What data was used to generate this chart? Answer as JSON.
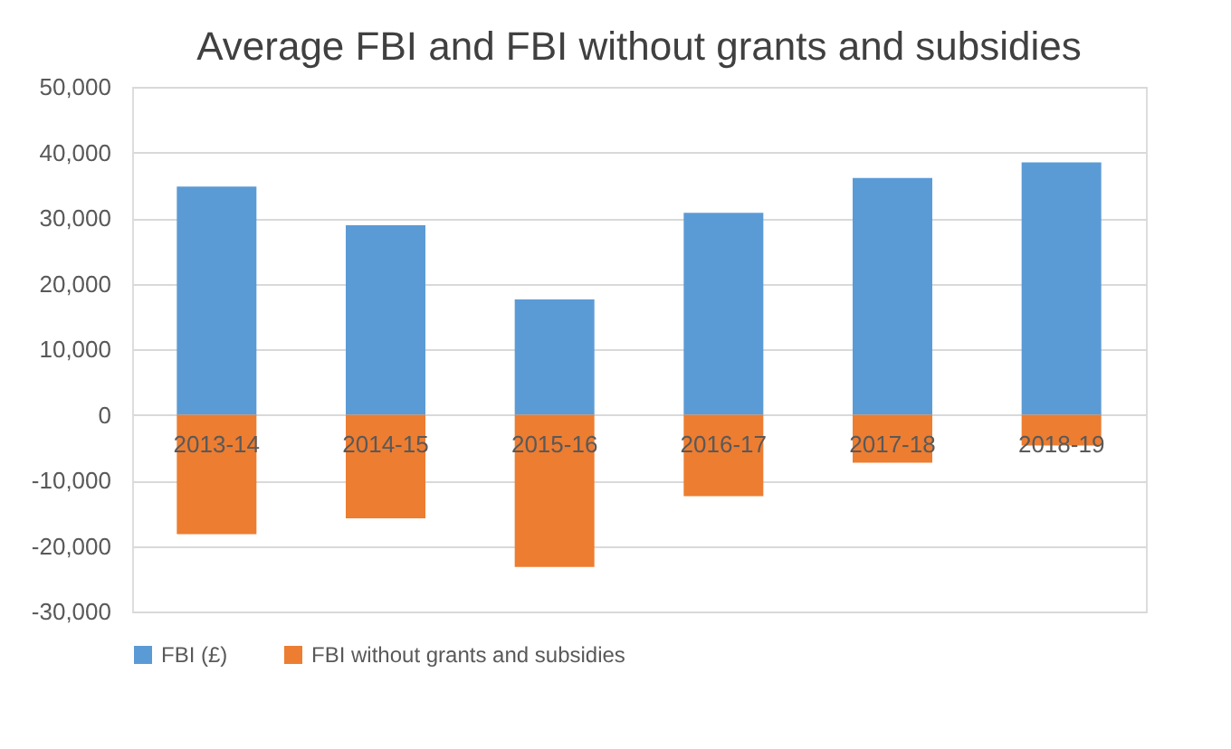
{
  "chart_data": {
    "type": "bar",
    "title": "Average FBI and FBI without grants and subsidies",
    "categories": [
      "2013-14",
      "2014-15",
      "2015-16",
      "2016-17",
      "2017-18",
      "2018-19"
    ],
    "series": [
      {
        "name": "FBI (£)",
        "color": "#5b9bd5",
        "values": [
          34800,
          28900,
          17600,
          30800,
          36100,
          38500
        ]
      },
      {
        "name": "FBI without grants and subsidies",
        "color": "#ed7d31",
        "values": [
          -18200,
          -15800,
          -23200,
          -12400,
          -7300,
          -4700
        ]
      }
    ],
    "ylim": [
      -30000,
      50000
    ],
    "yticks": [
      {
        "value": -30000,
        "label": "-30,000"
      },
      {
        "value": -20000,
        "label": "-20,000"
      },
      {
        "value": -10000,
        "label": "-10,000"
      },
      0,
      {
        "value": 10000,
        "label": "10,000"
      },
      {
        "value": 20000,
        "label": "20,000"
      },
      {
        "value": 30000,
        "label": "30,000"
      },
      {
        "value": 40000,
        "label": "40,000"
      },
      {
        "value": 50000,
        "label": "50,000"
      }
    ],
    "stacked": true,
    "grid": "y",
    "legend": "bottom"
  }
}
